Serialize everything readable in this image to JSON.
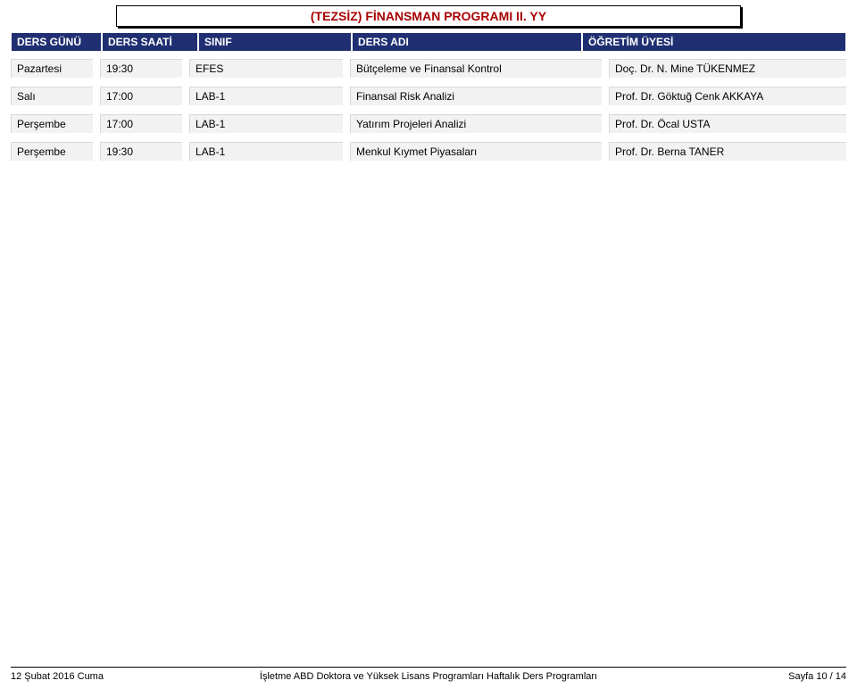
{
  "title": "(TEZSİZ) FİNANSMAN PROGRAMI II. YY",
  "colors": {
    "title_text": "#a80000",
    "header_bg": "#1f2f72",
    "header_text": "#ffffff",
    "cell_bg": "#f2f2f2",
    "cell_border": "#d8d8d8",
    "page_bg": "#ffffff",
    "text": "#000000"
  },
  "columns": {
    "gunu": "DERS GÜNÜ",
    "saati": "DERS SAATİ",
    "sinif": "SINIF",
    "adi": "DERS ADI",
    "uyesi": "ÖĞRETİM ÜYESİ"
  },
  "rows": [
    {
      "gunu": "Pazartesi",
      "saati": "19:30",
      "sinif": "EFES",
      "adi": "Bütçeleme ve Finansal Kontrol",
      "uyesi": "Doç. Dr. N. Mine TÜKENMEZ"
    },
    {
      "gunu": "Salı",
      "saati": "17:00",
      "sinif": "LAB-1",
      "adi": "Finansal Risk Analizi",
      "uyesi": "Prof. Dr. Göktuğ Cenk AKKAYA"
    },
    {
      "gunu": "Perşembe",
      "saati": "17:00",
      "sinif": "LAB-1",
      "adi": "Yatırım Projeleri Analizi",
      "uyesi": "Prof. Dr. Öcal USTA"
    },
    {
      "gunu": "Perşembe",
      "saati": "19:30",
      "sinif": "LAB-1",
      "adi": "Menkul Kıymet Piyasaları",
      "uyesi": "Prof. Dr. Berna TANER"
    }
  ],
  "footer": {
    "left": "12 Şubat 2016 Cuma",
    "center": "İşletme ABD Doktora ve Yüksek Lisans Programları Haftalık Ders Programları",
    "right": "Sayfa 10 / 14"
  }
}
